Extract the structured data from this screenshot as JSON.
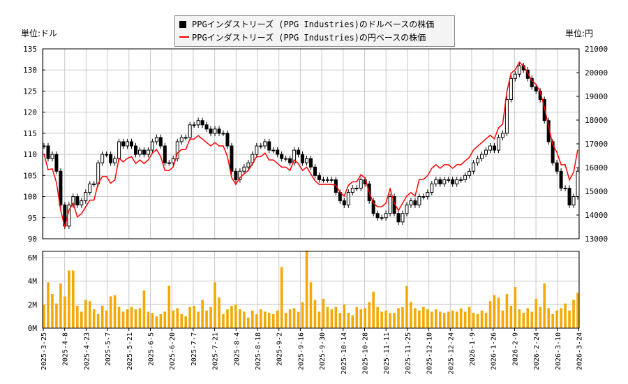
{
  "chart_data": {
    "type": "candlestick+line+bar",
    "legend": {
      "placement": "top-center",
      "entries": [
        {
          "label": "PPGインダストリーズ (PPG Industries)のドルベースの株価",
          "color": "#000000",
          "marker": "square"
        },
        {
          "label": "PPGインダストリーズ (PPG Industries)の円ベースの株価",
          "color": "#ff0000",
          "marker": "line"
        }
      ]
    },
    "left_unit": "単位:ドル",
    "right_unit": "単位:円",
    "y_left": {
      "range": [
        90,
        135
      ],
      "ticks": [
        "90",
        "95",
        "100",
        "105",
        "110",
        "115",
        "120",
        "125",
        "130",
        "135"
      ]
    },
    "y_right": {
      "range": [
        13000,
        21000
      ],
      "ticks": [
        "13000",
        "14000",
        "15000",
        "16000",
        "17000",
        "18000",
        "19000",
        "20000",
        "21000"
      ]
    },
    "volume_axis": {
      "range": [
        0,
        6.53
      ],
      "ticks": [
        "0M",
        "2M",
        "4M",
        "6M"
      ]
    },
    "grid": true,
    "x_ticks": [
      "2025-3-25",
      "2025-4-8",
      "2025-4-23",
      "2025-5-7",
      "2025-5-21",
      "2025-6-5",
      "2025-6-20",
      "2025-7-7",
      "2025-7-21",
      "2025-8-4",
      "2025-8-18",
      "2025-9-2",
      "2025-9-16",
      "2025-9-30",
      "2025-10-14",
      "2025-10-28",
      "2025-11-11",
      "2025-11-25",
      "2025-12-10",
      "2025-12-24",
      "2026-1-9",
      "2026-1-26",
      "2026-2-9",
      "2026-2-24",
      "2026-3-10",
      "2026-3-24"
    ],
    "usd_close": [
      112,
      109,
      110,
      106,
      98,
      93,
      98,
      100,
      98,
      99,
      101,
      103,
      103,
      108,
      110,
      110,
      108,
      109,
      113,
      112,
      113,
      112,
      110,
      111,
      110,
      111,
      113,
      114,
      112,
      108,
      108,
      109,
      113,
      114,
      114,
      117,
      117,
      118,
      117,
      116,
      115,
      116,
      115,
      115,
      112,
      106,
      104,
      106,
      107,
      108,
      110,
      112,
      112,
      113,
      111,
      111,
      110,
      109,
      109,
      108,
      111,
      110,
      108,
      109,
      107,
      105,
      104,
      104,
      104,
      104,
      101,
      99,
      98,
      101,
      102,
      102,
      104,
      103,
      99,
      96,
      95,
      95,
      96,
      100,
      96,
      94,
      96,
      98,
      99,
      98,
      100,
      100,
      101,
      103,
      104,
      103,
      104,
      104,
      103,
      104,
      104,
      105,
      106,
      108,
      109,
      110,
      111,
      112,
      111,
      114,
      115,
      123,
      128,
      129,
      131,
      130,
      128,
      126,
      125,
      123,
      118,
      113,
      108,
      106,
      102,
      102,
      98,
      100,
      106
    ],
    "jpy_close": [
      16580,
      15910,
      15950,
      15370,
      14210,
      13490,
      14210,
      14500,
      13920,
      14060,
      14340,
      14630,
      14630,
      15340,
      15620,
      15620,
      15340,
      15480,
      16390,
      16240,
      16390,
      16460,
      16170,
      16320,
      16170,
      16320,
      16610,
      16760,
      16460,
      15880,
      15880,
      16020,
      16610,
      16760,
      16760,
      17200,
      17200,
      17350,
      17200,
      17050,
      16910,
      17050,
      16910,
      16910,
      16460,
      15580,
      15290,
      15580,
      15730,
      15880,
      16170,
      16460,
      16460,
      16610,
      16320,
      16320,
      16170,
      16020,
      16020,
      15880,
      16320,
      16170,
      15880,
      16020,
      15730,
      15440,
      15290,
      15290,
      15290,
      15290,
      15250,
      14950,
      14800,
      15250,
      15400,
      15400,
      15700,
      15550,
      14950,
      14500,
      14350,
      14350,
      14500,
      15100,
      14500,
      14190,
      14500,
      14800,
      14950,
      14800,
      15500,
      15500,
      15660,
      15970,
      16120,
      15970,
      16120,
      16120,
      15970,
      16120,
      16120,
      16280,
      16430,
      16740,
      16900,
      17050,
      17210,
      17360,
      17210,
      17670,
      17830,
      19190,
      19970,
      20120,
      20440,
      20280,
      19970,
      19660,
      19500,
      19190,
      18530,
      17740,
      16960,
      16640,
      16120,
      16120,
      15480,
      15800,
      16750
    ],
    "volume_m": [
      2.0,
      3.9,
      2.9,
      2.1,
      3.8,
      2.7,
      4.9,
      4.9,
      1.9,
      1.4,
      2.4,
      2.3,
      1.6,
      1.2,
      1.9,
      1.5,
      2.7,
      2.8,
      1.8,
      1.4,
      1.6,
      1.8,
      1.6,
      1.7,
      3.2,
      1.4,
      1.3,
      1.0,
      1.2,
      1.4,
      3.6,
      1.5,
      1.7,
      1.2,
      1.0,
      1.8,
      1.9,
      1.4,
      2.4,
      1.5,
      1.8,
      3.9,
      2.6,
      1.2,
      1.6,
      1.9,
      2.0,
      1.6,
      1.4,
      0.9,
      1.5,
      1.2,
      1.6,
      1.4,
      1.3,
      1.2,
      1.5,
      5.2,
      1.3,
      1.6,
      1.7,
      1.4,
      2.2,
      6.6,
      3.9,
      2.4,
      1.4,
      2.5,
      1.8,
      1.6,
      1.8,
      1.3,
      2.0,
      1.3,
      1.1,
      1.8,
      1.6,
      1.7,
      2.2,
      3.1,
      1.8,
      1.4,
      1.5,
      1.3,
      1.3,
      1.7,
      1.8,
      3.6,
      2.2,
      1.7,
      1.5,
      1.8,
      1.6,
      1.4,
      1.6,
      1.4,
      1.3,
      1.4,
      1.5,
      1.4,
      1.7,
      1.4,
      1.8,
      1.3,
      1.2,
      1.5,
      1.3,
      2.3,
      2.8,
      2.6,
      1.5,
      2.9,
      1.9,
      3.5,
      1.6,
      1.3,
      1.7,
      1.4,
      2.5,
      1.8,
      3.8,
      1.7,
      1.2,
      1.5,
      1.7,
      2.1,
      1.5,
      2.4,
      3.0
    ]
  }
}
